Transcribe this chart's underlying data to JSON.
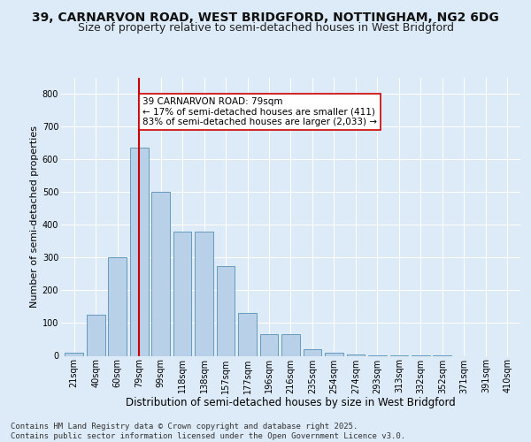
{
  "title_line1": "39, CARNARVON ROAD, WEST BRIDGFORD, NOTTINGHAM, NG2 6DG",
  "title_line2": "Size of property relative to semi-detached houses in West Bridgford",
  "xlabel": "Distribution of semi-detached houses by size in West Bridgford",
  "ylabel": "Number of semi-detached properties",
  "categories": [
    "21sqm",
    "40sqm",
    "60sqm",
    "79sqm",
    "99sqm",
    "118sqm",
    "138sqm",
    "157sqm",
    "177sqm",
    "196sqm",
    "216sqm",
    "235sqm",
    "254sqm",
    "274sqm",
    "293sqm",
    "313sqm",
    "332sqm",
    "352sqm",
    "371sqm",
    "391sqm",
    "410sqm"
  ],
  "values": [
    10,
    125,
    300,
    635,
    500,
    380,
    380,
    275,
    130,
    65,
    65,
    20,
    10,
    5,
    2,
    1,
    1,
    1,
    0,
    0,
    0
  ],
  "bar_color": "#b8d0e8",
  "bar_edge_color": "#6699bb",
  "vline_index": 3,
  "vline_color": "#cc0000",
  "annotation_text": "39 CARNARVON ROAD: 79sqm\n← 17% of semi-detached houses are smaller (411)\n83% of semi-detached houses are larger (2,033) →",
  "annotation_box_color": "#ffffff",
  "annotation_box_edge": "#cc0000",
  "ylim": [
    0,
    850
  ],
  "yticks": [
    0,
    100,
    200,
    300,
    400,
    500,
    600,
    700,
    800
  ],
  "background_color": "#ddeaf7",
  "plot_bg_color": "#ddeaf7",
  "footer_text": "Contains HM Land Registry data © Crown copyright and database right 2025.\nContains public sector information licensed under the Open Government Licence v3.0.",
  "title_fontsize": 10,
  "subtitle_fontsize": 9,
  "xlabel_fontsize": 8.5,
  "ylabel_fontsize": 8,
  "tick_fontsize": 7,
  "footer_fontsize": 6.5,
  "annot_fontsize": 7.5
}
